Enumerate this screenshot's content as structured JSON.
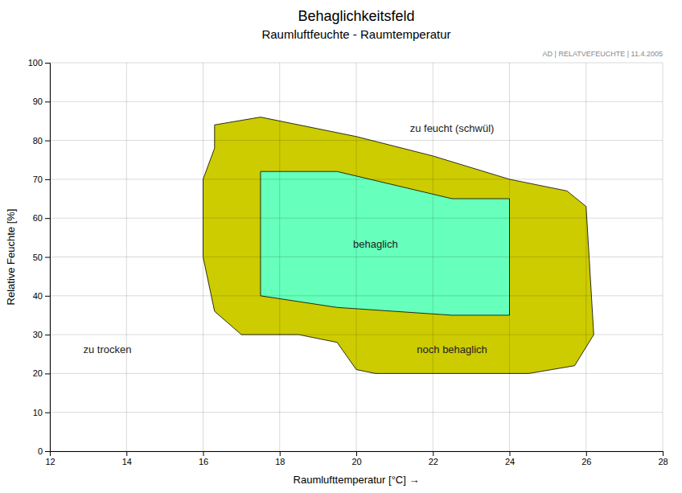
{
  "chart_data": {
    "type": "polygon",
    "title": "Behaglichkeitsfeld",
    "subtitle": "Raumluftfeuchte - Raumtemperatur",
    "xlabel": "Raumlufttemperatur [°C]   →",
    "ylabel": "Relative Feuchte [%]",
    "xlim": [
      12,
      28
    ],
    "ylim": [
      0,
      100
    ],
    "xticks": [
      12,
      14,
      16,
      18,
      20,
      22,
      24,
      26,
      28
    ],
    "yticks": [
      0,
      10,
      20,
      30,
      40,
      50,
      60,
      70,
      80,
      90,
      100
    ],
    "grid": true,
    "series": [
      {
        "color": "#CCCC00",
        "x": [
          16.3,
          17.5,
          20.0,
          22.0,
          24.0,
          25.5,
          26.0,
          26.2,
          25.7,
          24.5,
          22.5,
          20.5,
          20.0,
          19.5,
          18.5,
          17.0,
          16.3,
          16.0,
          16.0,
          16.3,
          16.3
        ],
        "values": [
          84,
          86,
          81,
          76,
          70,
          67,
          63,
          30,
          22,
          20,
          20,
          20,
          21,
          28,
          30,
          30,
          36,
          50,
          70,
          78,
          84
        ]
      },
      {
        "color": "#66FFBB",
        "x": [
          17.5,
          19.5,
          22.5,
          24.0,
          24.0,
          22.5,
          19.5,
          17.5,
          17.5
        ],
        "values": [
          72,
          72,
          65,
          65,
          35,
          35,
          37,
          40,
          72
        ]
      }
    ],
    "annotations": [
      {
        "text": "zu feucht (schwül)",
        "x": 22.5,
        "y": 83
      },
      {
        "text": "behaglich",
        "x": 20.5,
        "y": 53
      },
      {
        "text": "noch behaglich",
        "x": 22.5,
        "y": 26
      },
      {
        "text": "zu trocken",
        "x": 13.5,
        "y": 26
      },
      {
        "text": "AD | RELATVEFEUCHTE | 11.4.2005"
      }
    ]
  }
}
